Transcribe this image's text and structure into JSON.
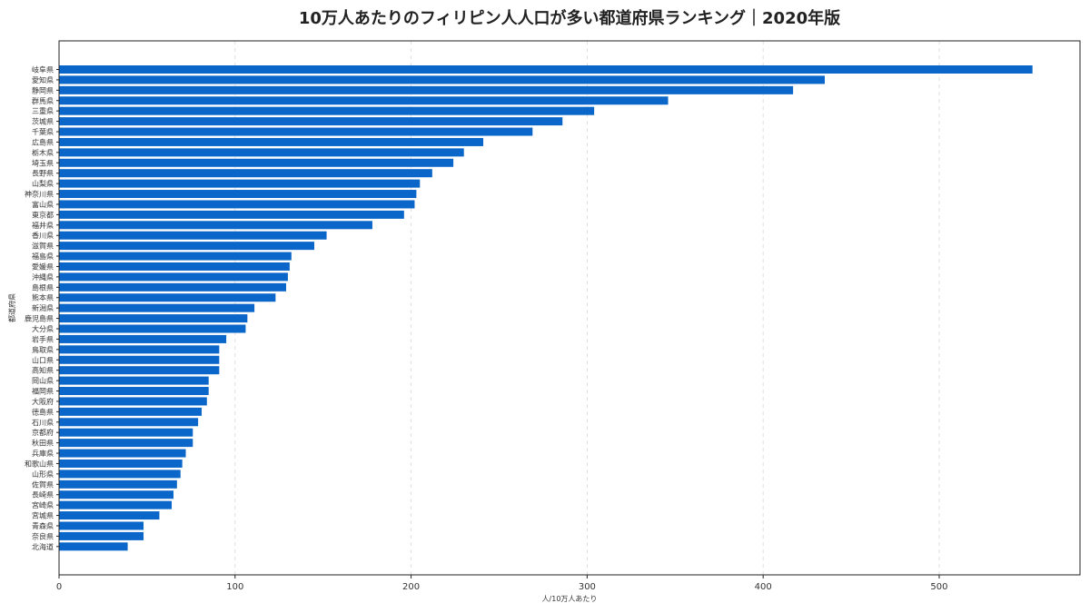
{
  "chart_data": {
    "type": "bar",
    "orientation": "horizontal",
    "title": "10万人あたりのフィリピン人人口が多い都道府県ランキング｜2020年版",
    "xlabel": "人/10万人あたり",
    "ylabel": "都道府県",
    "xlim": [
      0,
      580
    ],
    "xticks": [
      0,
      100,
      200,
      300,
      400,
      500
    ],
    "grid": "vertical-dashed",
    "bar_color": "#0a66c9",
    "categories": [
      "岐阜県",
      "愛知県",
      "静岡県",
      "群馬県",
      "三重県",
      "茨城県",
      "千葉県",
      "広島県",
      "栃木県",
      "埼玉県",
      "長野県",
      "山梨県",
      "神奈川県",
      "富山県",
      "東京都",
      "福井県",
      "香川県",
      "滋賀県",
      "福島県",
      "愛媛県",
      "沖縄県",
      "島根県",
      "熊本県",
      "新潟県",
      "鹿児島県",
      "大分県",
      "岩手県",
      "鳥取県",
      "山口県",
      "高知県",
      "岡山県",
      "福岡県",
      "大阪府",
      "徳島県",
      "石川県",
      "京都府",
      "秋田県",
      "兵庫県",
      "和歌山県",
      "山形県",
      "佐賀県",
      "長崎県",
      "宮崎県",
      "宮城県",
      "青森県",
      "奈良県",
      "北海道"
    ],
    "values": [
      553,
      435,
      417,
      346,
      304,
      286,
      269,
      241,
      230,
      224,
      212,
      205,
      203,
      202,
      196,
      178,
      152,
      145,
      132,
      131,
      130,
      129,
      123,
      111,
      107,
      106,
      95,
      91,
      91,
      91,
      85,
      85,
      84,
      81,
      79,
      76,
      76,
      72,
      70,
      69,
      67,
      65,
      64,
      57,
      48,
      48,
      39
    ]
  }
}
